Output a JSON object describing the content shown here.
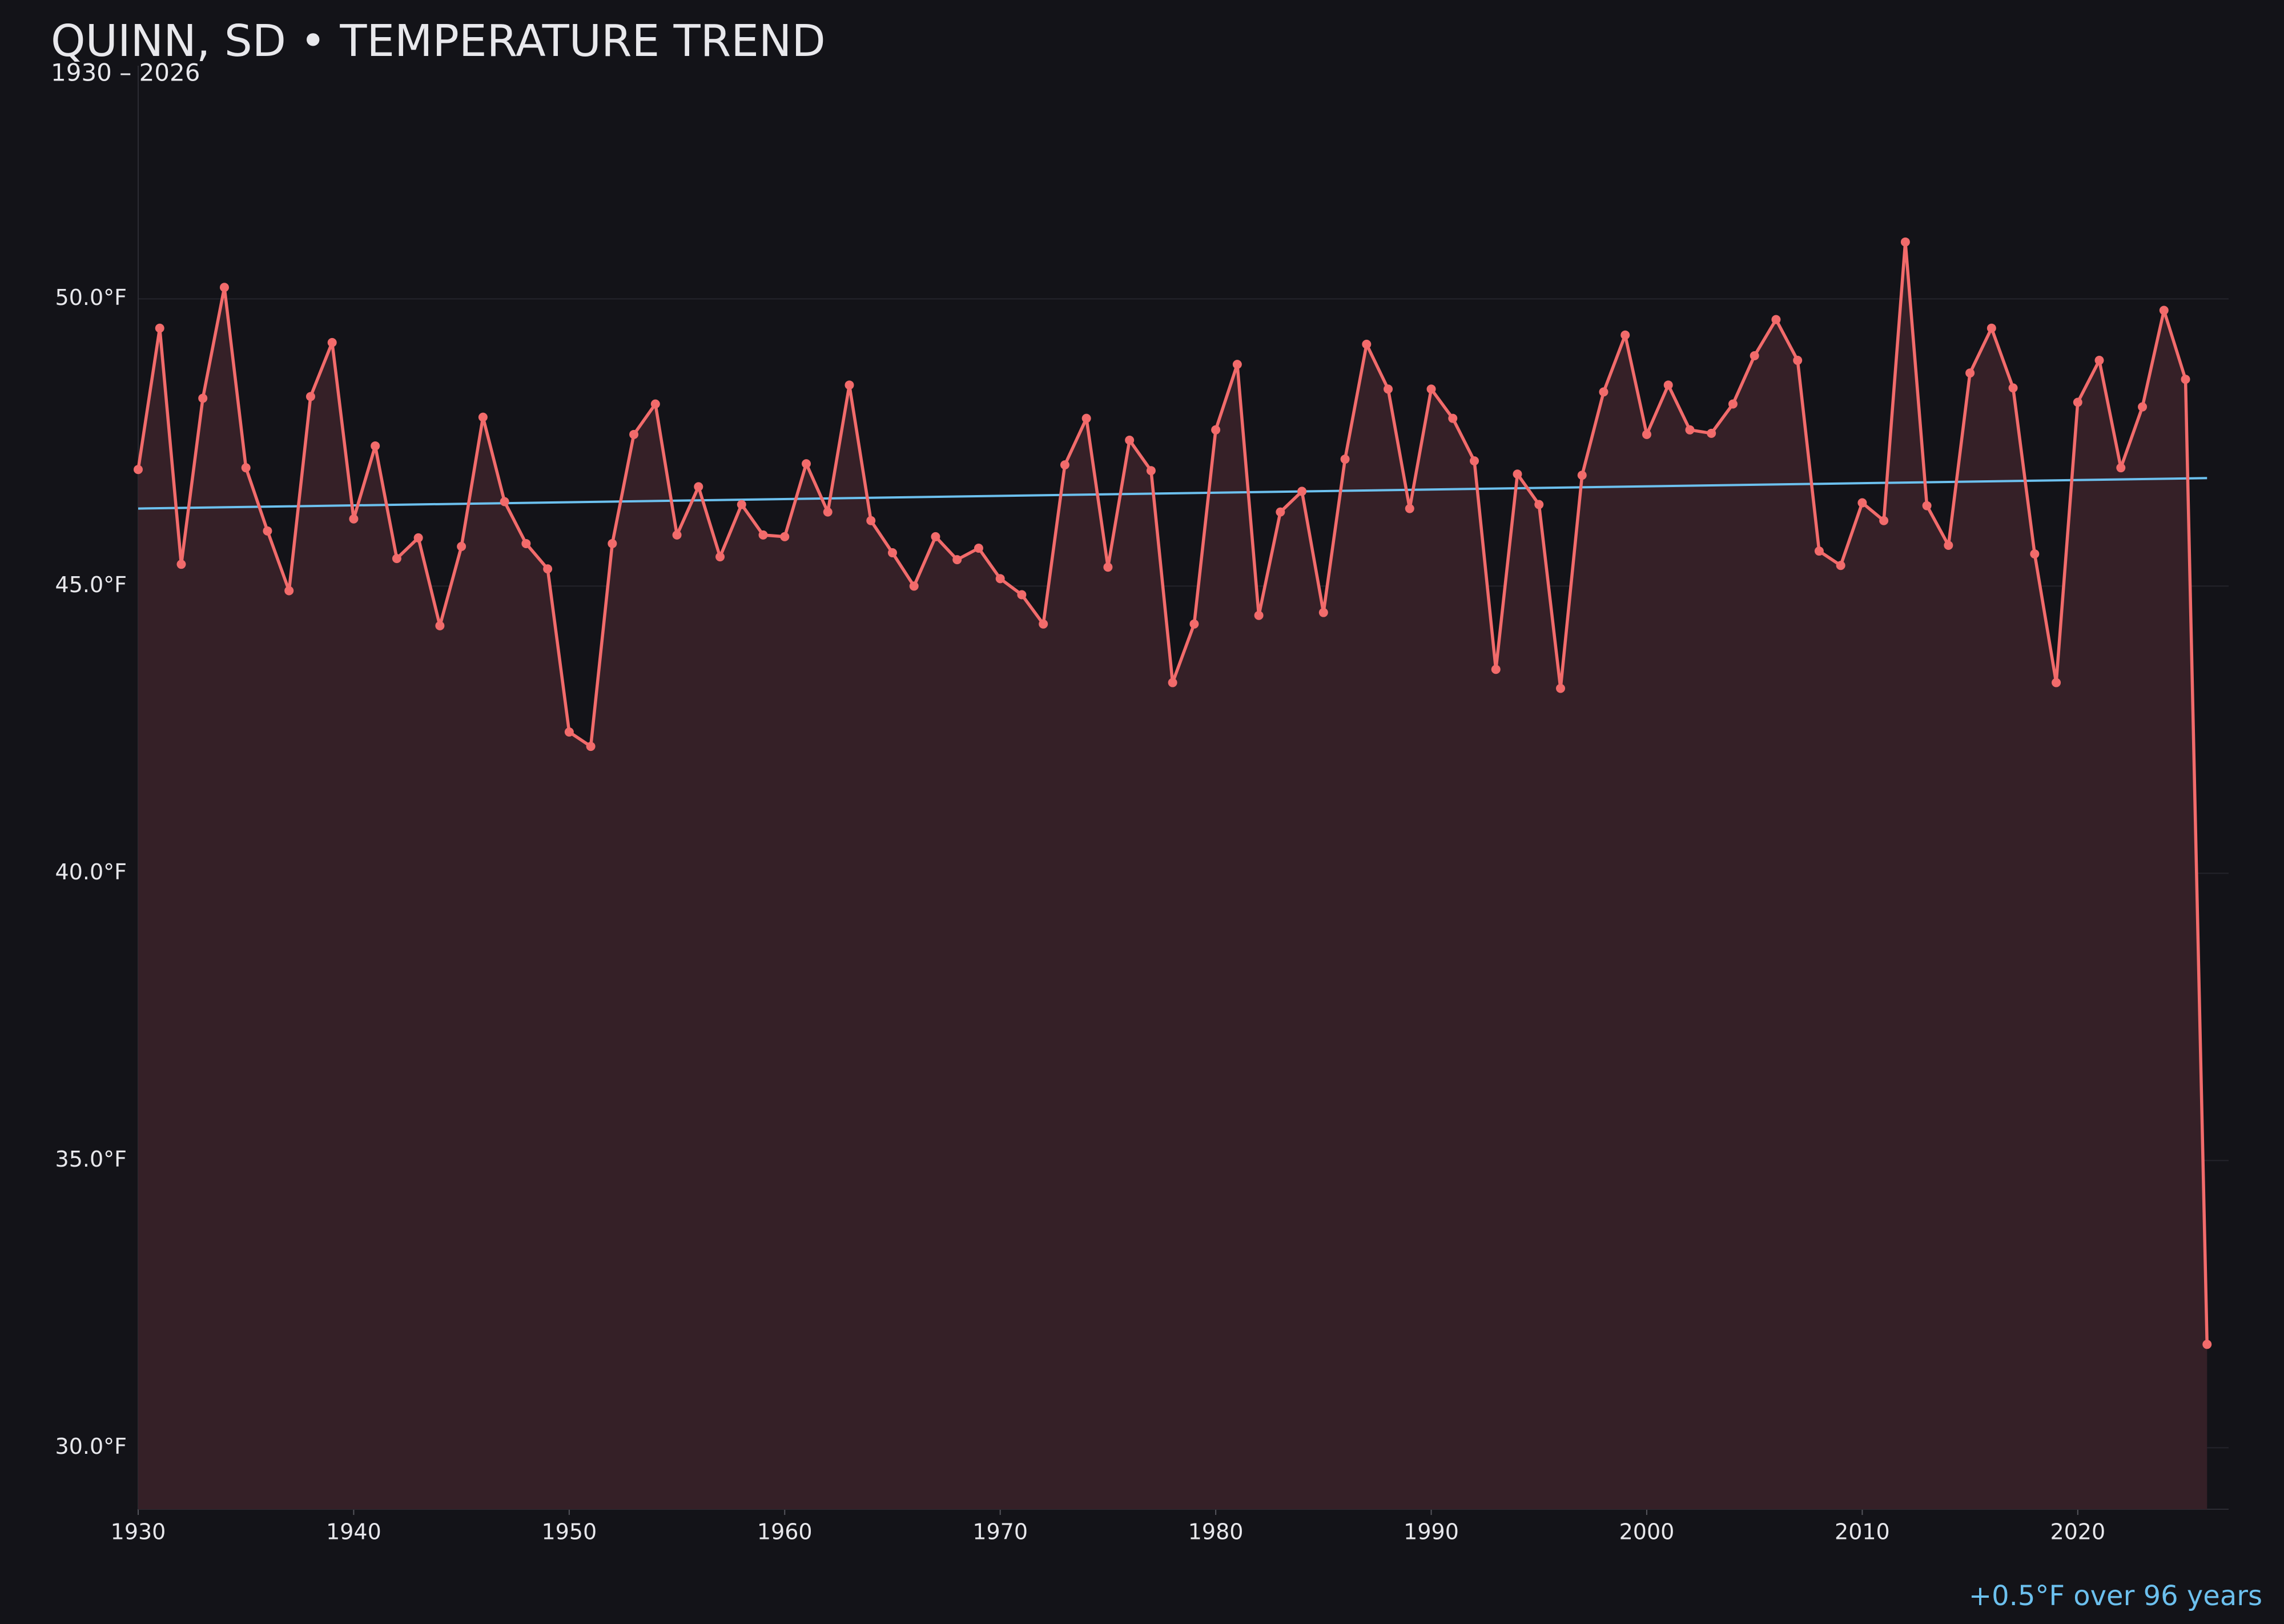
{
  "chart_data": {
    "type": "line",
    "title": "QUINN, SD • TEMPERATURE TREND",
    "subtitle": "1930 – 2026",
    "annotation": "+0.5°F over 96 years",
    "x": [
      1930,
      1931,
      1932,
      1933,
      1934,
      1935,
      1936,
      1937,
      1938,
      1939,
      1940,
      1941,
      1942,
      1943,
      1944,
      1945,
      1946,
      1947,
      1948,
      1949,
      1950,
      1951,
      1952,
      1953,
      1954,
      1955,
      1956,
      1957,
      1958,
      1959,
      1960,
      1961,
      1962,
      1963,
      1964,
      1965,
      1966,
      1967,
      1968,
      1969,
      1970,
      1971,
      1972,
      1973,
      1974,
      1975,
      1976,
      1977,
      1978,
      1979,
      1980,
      1981,
      1982,
      1983,
      1984,
      1985,
      1986,
      1987,
      1988,
      1989,
      1990,
      1991,
      1992,
      1993,
      1994,
      1995,
      1996,
      1997,
      1998,
      1999,
      2000,
      2001,
      2002,
      2003,
      2004,
      2005,
      2006,
      2007,
      2008,
      2009,
      2010,
      2011,
      2012,
      2013,
      2014,
      2015,
      2016,
      2017,
      2018,
      2019,
      2020,
      2021,
      2022,
      2023,
      2024,
      2025,
      2026
    ],
    "series": [
      {
        "color": "#f26b6b",
        "fill": "#352027",
        "values": [
          47.03,
          49.49,
          45.38,
          48.27,
          50.2,
          47.06,
          45.96,
          44.92,
          48.3,
          49.24,
          46.17,
          47.44,
          45.48,
          45.84,
          44.31,
          45.69,
          47.94,
          46.47,
          45.74,
          45.3,
          42.46,
          42.21,
          45.74,
          47.64,
          48.17,
          45.89,
          46.73,
          45.51,
          46.42,
          45.89,
          45.86,
          47.13,
          46.29,
          48.5,
          46.14,
          45.58,
          45.0,
          45.86,
          45.46,
          45.66,
          45.13,
          44.85,
          44.34,
          47.11,
          47.92,
          45.33,
          47.54,
          47.01,
          43.32,
          44.34,
          47.72,
          48.86,
          44.49,
          46.29,
          46.65,
          44.54,
          47.21,
          49.21,
          48.43,
          46.35,
          48.43,
          47.92,
          47.18,
          43.55,
          46.95,
          46.42,
          43.22,
          46.93,
          48.38,
          49.37,
          47.64,
          48.5,
          47.72,
          47.66,
          48.17,
          49.01,
          49.64,
          48.93,
          45.61,
          45.36,
          46.45,
          46.14,
          50.99,
          46.4,
          45.71,
          48.71,
          49.49,
          48.45,
          45.56,
          43.32,
          48.2,
          48.93,
          47.06,
          48.12,
          49.8,
          48.6,
          31.8
        ]
      }
    ],
    "trend": {
      "x": [
        1930,
        2026
      ],
      "values": [
        46.35,
        46.88
      ],
      "color": "#6cc0ee"
    },
    "xlim": [
      1930,
      2027
    ],
    "ylim": [
      28.93,
      54.06
    ],
    "xticks": [
      1930,
      1940,
      1950,
      1960,
      1970,
      1980,
      1990,
      2000,
      2010,
      2020
    ],
    "yticks": [
      {
        "value": 30,
        "label": "30.0°F"
      },
      {
        "value": 35,
        "label": "35.0°F"
      },
      {
        "value": 40,
        "label": "40.0°F"
      },
      {
        "value": 45,
        "label": "45.0°F"
      },
      {
        "value": 50,
        "label": "50.0°F"
      }
    ],
    "grid": true
  }
}
